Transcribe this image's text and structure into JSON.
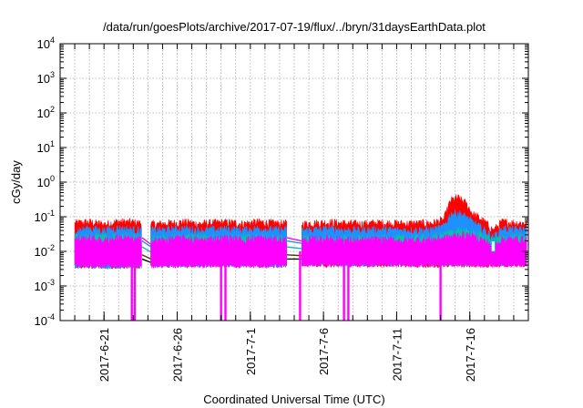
{
  "chart_data": {
    "type": "area",
    "title": "/data/run/goesPlots/archive/2017-07-19/flux/../bryn/31daysEarthData.plot",
    "xlabel": "Coordinated Universal Time (UTC)",
    "ylabel": "cGy/day",
    "yscale": "log",
    "ylim": [
      0.0001,
      10000
    ],
    "y_ticks": [
      {
        "value": 0.0001,
        "base": "10",
        "exp": "-4"
      },
      {
        "value": 0.001,
        "base": "10",
        "exp": "-3"
      },
      {
        "value": 0.01,
        "base": "10",
        "exp": "-2"
      },
      {
        "value": 0.1,
        "base": "10",
        "exp": "-1"
      },
      {
        "value": 1,
        "base": "10",
        "exp": "0"
      },
      {
        "value": 10,
        "base": "10",
        "exp": "1"
      },
      {
        "value": 100,
        "base": "10",
        "exp": "2"
      },
      {
        "value": 1000,
        "base": "10",
        "exp": "3"
      },
      {
        "value": 10000,
        "base": "10",
        "exp": "4"
      }
    ],
    "xlim": [
      "2017-06-18",
      "2017-07-20"
    ],
    "x_ticks": [
      "2017-6-21",
      "2017-6-26",
      "2017-7-1",
      "2017-7-6",
      "2017-7-11",
      "2017-7-16"
    ],
    "grid": true,
    "data_gaps": [
      {
        "start": "2017-06-23.6",
        "end": "2017-06-24.2"
      },
      {
        "start": "2017-07-03.5",
        "end": "2017-07-04.5"
      }
    ],
    "series": [
      {
        "color": "#ff0000",
        "x": [
          "2017-06-19.0",
          "2017-06-20.0",
          "2017-06-21.0",
          "2017-06-22.0",
          "2017-06-23.0",
          "2017-06-24.5",
          "2017-06-25.5",
          "2017-06-26.5",
          "2017-06-27.5",
          "2017-06-28.5",
          "2017-06-29.5",
          "2017-06-30.5",
          "2017-07-01.5",
          "2017-07-02.5",
          "2017-07-04.5",
          "2017-07-05.5",
          "2017-07-06.5",
          "2017-07-07.5",
          "2017-07-08.5",
          "2017-07-09.5",
          "2017-07-10.5",
          "2017-07-11.5",
          "2017-07-12.5",
          "2017-07-13.5",
          "2017-07-14.2",
          "2017-07-14.7",
          "2017-07-15.2",
          "2017-07-15.7",
          "2017-07-16.2",
          "2017-07-16.7",
          "2017-07-17.2",
          "2017-07-17.6",
          "2017-07-18.2",
          "2017-07-19.0",
          "2017-07-19.9"
        ],
        "values": [
          0.065,
          0.07,
          0.06,
          0.072,
          0.068,
          0.06,
          0.065,
          0.07,
          0.062,
          0.066,
          0.068,
          0.063,
          0.07,
          0.065,
          0.062,
          0.066,
          0.068,
          0.064,
          0.062,
          0.066,
          0.065,
          0.063,
          0.064,
          0.066,
          0.08,
          0.3,
          0.35,
          0.25,
          0.12,
          0.09,
          0.06,
          0.04,
          0.07,
          0.066,
          0.065
        ]
      },
      {
        "color": "#1e90ff",
        "x": [
          "2017-06-19.0",
          "2017-06-20.0",
          "2017-06-21.0",
          "2017-06-22.0",
          "2017-06-23.0",
          "2017-06-24.5",
          "2017-06-25.5",
          "2017-06-26.5",
          "2017-06-27.5",
          "2017-06-28.5",
          "2017-06-29.5",
          "2017-06-30.5",
          "2017-07-01.5",
          "2017-07-02.5",
          "2017-07-04.5",
          "2017-07-05.5",
          "2017-07-06.5",
          "2017-07-07.5",
          "2017-07-08.5",
          "2017-07-09.5",
          "2017-07-10.5",
          "2017-07-11.5",
          "2017-07-12.5",
          "2017-07-13.5",
          "2017-07-14.2",
          "2017-07-14.7",
          "2017-07-15.2",
          "2017-07-15.7",
          "2017-07-16.2",
          "2017-07-16.7",
          "2017-07-17.2",
          "2017-07-17.6",
          "2017-07-18.2",
          "2017-07-19.0",
          "2017-07-19.9"
        ],
        "values": [
          0.04,
          0.045,
          0.04,
          0.046,
          0.042,
          0.04,
          0.042,
          0.045,
          0.04,
          0.042,
          0.044,
          0.041,
          0.045,
          0.042,
          0.04,
          0.042,
          0.044,
          0.041,
          0.04,
          0.042,
          0.041,
          0.04,
          0.041,
          0.042,
          0.05,
          0.12,
          0.13,
          0.1,
          0.07,
          0.05,
          0.035,
          0.025,
          0.045,
          0.042,
          0.042
        ]
      },
      {
        "color": "#00c8a0",
        "x": [
          "2017-06-19.0",
          "2017-06-21.0",
          "2017-06-23.0",
          "2017-06-24.5",
          "2017-06-27.5",
          "2017-06-30.5",
          "2017-07-02.5",
          "2017-07-04.5",
          "2017-07-07.5",
          "2017-07-10.5",
          "2017-07-13.5",
          "2017-07-15.2",
          "2017-07-16.7",
          "2017-07-17.6",
          "2017-07-18.2",
          "2017-07-19.9"
        ],
        "values": [
          0.025,
          0.026,
          0.025,
          0.024,
          0.025,
          0.025,
          0.024,
          0.022,
          0.023,
          0.023,
          0.024,
          0.04,
          0.03,
          0.02,
          0.025,
          0.025
        ]
      },
      {
        "color": "#ff00ff",
        "x": [
          "2017-06-19.0",
          "2017-06-20.0",
          "2017-06-21.0",
          "2017-06-22.0",
          "2017-06-23.0",
          "2017-06-24.5",
          "2017-06-25.5",
          "2017-06-26.5",
          "2017-06-27.5",
          "2017-06-28.5",
          "2017-06-29.5",
          "2017-06-30.5",
          "2017-07-01.5",
          "2017-07-02.5",
          "2017-07-04.5",
          "2017-07-05.5",
          "2017-07-06.5",
          "2017-07-07.5",
          "2017-07-08.5",
          "2017-07-09.5",
          "2017-07-10.5",
          "2017-07-11.5",
          "2017-07-12.5",
          "2017-07-13.5",
          "2017-07-14.5",
          "2017-07-15.5",
          "2017-07-16.5",
          "2017-07-17.6",
          "2017-07-18.2",
          "2017-07-19.0",
          "2017-07-19.9"
        ],
        "values": [
          0.022,
          0.024,
          0.02,
          0.025,
          0.022,
          0.02,
          0.022,
          0.024,
          0.02,
          0.023,
          0.024,
          0.021,
          0.024,
          0.022,
          0.02,
          0.022,
          0.024,
          0.021,
          0.02,
          0.022,
          0.021,
          0.02,
          0.021,
          0.022,
          0.025,
          0.03,
          0.025,
          0.015,
          0.022,
          0.022,
          0.022
        ],
        "floor": 0.004,
        "dropouts": [
          "2017-06-22.9",
          "2017-06-23.1",
          "2017-06-29.0",
          "2017-06-29.3",
          "2017-07-04.4",
          "2017-07-07.4",
          "2017-07-07.7",
          "2017-07-14.0"
        ]
      }
    ]
  }
}
